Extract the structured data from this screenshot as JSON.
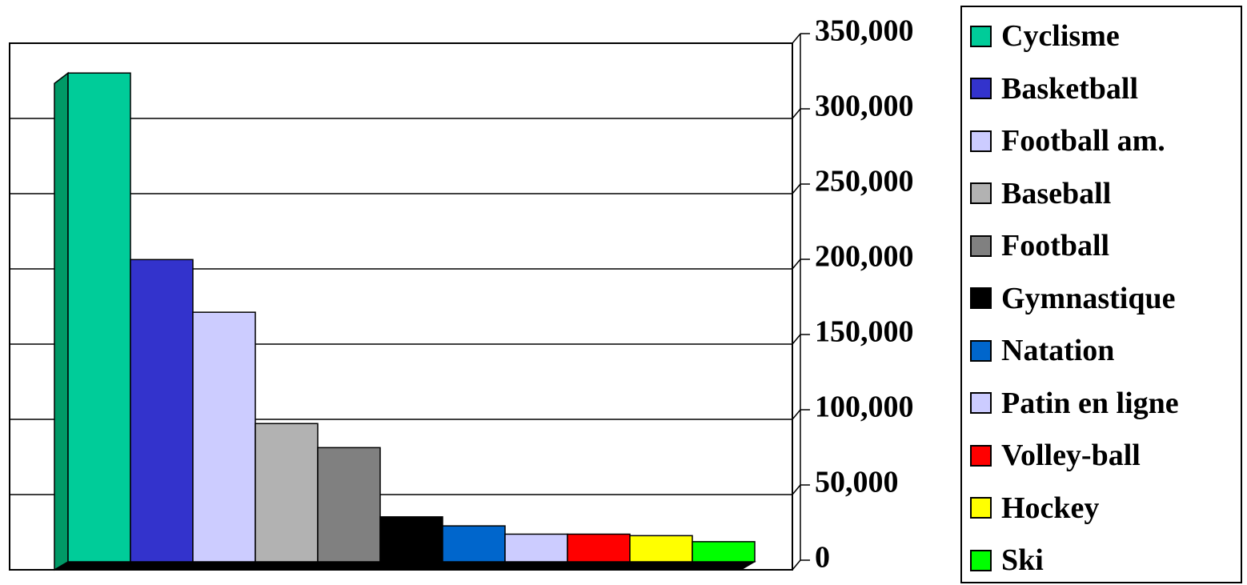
{
  "chart_data": {
    "type": "bar",
    "categories": [
      "Cyclisme",
      "Basketball",
      "Football am.",
      "Baseball",
      "Football",
      "Gymnastique",
      "Natation",
      "Patin en ligne",
      "Volley-ball",
      "Hockey",
      "Ski"
    ],
    "values": [
      327000,
      203000,
      168000,
      94000,
      78000,
      32000,
      26000,
      20500,
      20500,
      19500,
      15500
    ],
    "colors": [
      "#00CC99",
      "#3333CC",
      "#CCCCFF",
      "#B2B2B2",
      "#808080",
      "#000000",
      "#0066CC",
      "#CCCCFF",
      "#FF0000",
      "#FFFF00",
      "#00FF00"
    ],
    "ylim": [
      0,
      350000
    ],
    "yticks": [
      0,
      50000,
      100000,
      150000,
      200000,
      250000,
      300000,
      350000
    ],
    "ytick_labels": [
      "0",
      "50,000",
      "100,000",
      "150,000",
      "200,000",
      "250,000",
      "300,000",
      "350,000"
    ],
    "y_axis_side": "right",
    "grid": true,
    "style": "3d",
    "legend_position": "right",
    "title": "",
    "xlabel": "",
    "ylabel": ""
  }
}
